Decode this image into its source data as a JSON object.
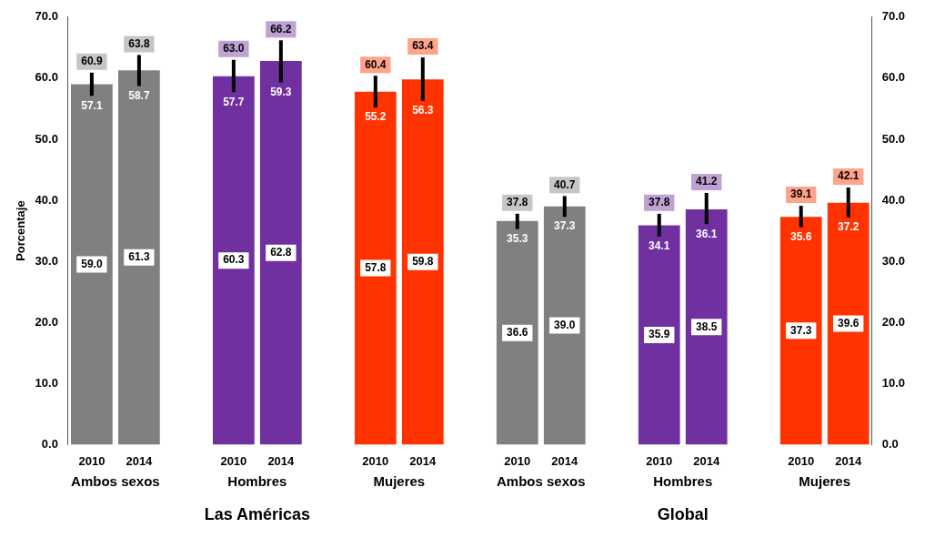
{
  "chart_data": {
    "type": "bar",
    "ylabel": "Porcentaje",
    "categories": [
      "2010",
      "2014",
      null,
      "2010",
      "2014",
      null,
      "2010",
      "2014",
      null,
      "2010",
      "2014",
      null,
      "2010",
      "2014",
      null,
      "2010",
      "2014"
    ],
    "values": [
      59.0,
      61.3,
      null,
      60.3,
      62.8,
      null,
      57.8,
      59.8,
      null,
      36.6,
      39.0,
      null,
      35.9,
      38.5,
      null,
      37.3,
      39.6
    ],
    "value_labels": [
      "59.0",
      "61.3",
      null,
      "60.3",
      "62.8",
      null,
      "57.8",
      "59.8",
      null,
      "36.6",
      "39.0",
      null,
      "35.9",
      "38.5",
      null,
      "37.3",
      "39.6"
    ],
    "errors": [
      [
        57.1,
        60.9
      ],
      [
        58.7,
        63.8
      ],
      null,
      [
        57.7,
        63.0
      ],
      [
        59.3,
        66.2
      ],
      null,
      [
        55.2,
        60.4
      ],
      [
        56.3,
        63.4
      ],
      null,
      [
        35.3,
        37.8
      ],
      [
        37.3,
        40.7
      ],
      null,
      [
        34.1,
        37.8
      ],
      [
        36.1,
        41.2
      ],
      null,
      [
        35.6,
        39.1
      ],
      [
        37.2,
        42.1
      ]
    ],
    "colors": [
      "#808080",
      "#808080",
      "#ffffff",
      "#7030a0",
      "#7030a0",
      "#ffffff",
      "#ff3300",
      "#ff3300",
      "#ffffff",
      "#808080",
      "#808080",
      "#ffffff",
      "#7030a0",
      "#7030a0",
      "#ffffff",
      "#ff3300",
      "#ff3300"
    ],
    "ylim": [
      0,
      70
    ],
    "yticks": [
      {
        "value": 0,
        "label": "0.0"
      },
      {
        "value": 10,
        "label": "10.0"
      },
      {
        "value": 20,
        "label": "20.0"
      },
      {
        "value": 30,
        "label": "30.0"
      },
      {
        "value": 40,
        "label": "40.0"
      },
      {
        "value": 50,
        "label": "50.0"
      },
      {
        "value": 60,
        "label": "60.0"
      },
      {
        "value": 70,
        "label": "70.0"
      }
    ],
    "y2lim": [
      0,
      70
    ],
    "y2ticks": [
      {
        "value": 0,
        "label": "0.0"
      },
      {
        "value": 10,
        "label": "10.0"
      },
      {
        "value": 20,
        "label": "20.0"
      },
      {
        "value": 30,
        "label": "30.0"
      },
      {
        "value": 40,
        "label": "40.0"
      },
      {
        "value": 50,
        "label": "50.0"
      },
      {
        "value": 60,
        "label": "60.0"
      },
      {
        "value": 70,
        "label": "70.0"
      }
    ],
    "grid": false,
    "annotations": [
      "Ambos sexos",
      "Hombres",
      "Mujeres",
      "Ambos sexos",
      "Hombres",
      "Mujeres",
      "Las Américas",
      "Global",
      {
        "text": "60.9",
        "y": 60.9
      },
      {
        "text": "57.1",
        "y": 57.1
      },
      {
        "text": "63.8",
        "y": 63.8
      },
      {
        "text": "58.7",
        "y": 58.7
      },
      {
        "text": "63.0",
        "y": 63.0
      },
      {
        "text": "57.7",
        "y": 57.7
      },
      {
        "text": "66.2",
        "y": 66.2
      },
      {
        "text": "59.3",
        "y": 59.3
      },
      {
        "text": "60.4",
        "y": 60.4
      },
      {
        "text": "55.2",
        "y": 55.2
      },
      {
        "text": "63.4",
        "y": 63.4
      },
      {
        "text": "56.3",
        "y": 56.3
      },
      {
        "text": "37.8",
        "y": 37.8
      },
      {
        "text": "35.3",
        "y": 35.3
      },
      {
        "text": "40.7",
        "y": 40.7
      },
      {
        "text": "37.3",
        "y": 37.3
      },
      {
        "text": "37.8",
        "y": 37.8
      },
      {
        "text": "34.1",
        "y": 34.1
      },
      {
        "text": "41.2",
        "y": 41.2
      },
      {
        "text": "36.1",
        "y": 36.1
      },
      {
        "text": "39.1",
        "y": 39.1
      },
      {
        "text": "35.6",
        "y": 35.6
      },
      {
        "text": "42.1",
        "y": 42.1
      },
      {
        "text": "37.2",
        "y": 37.2
      }
    ]
  }
}
